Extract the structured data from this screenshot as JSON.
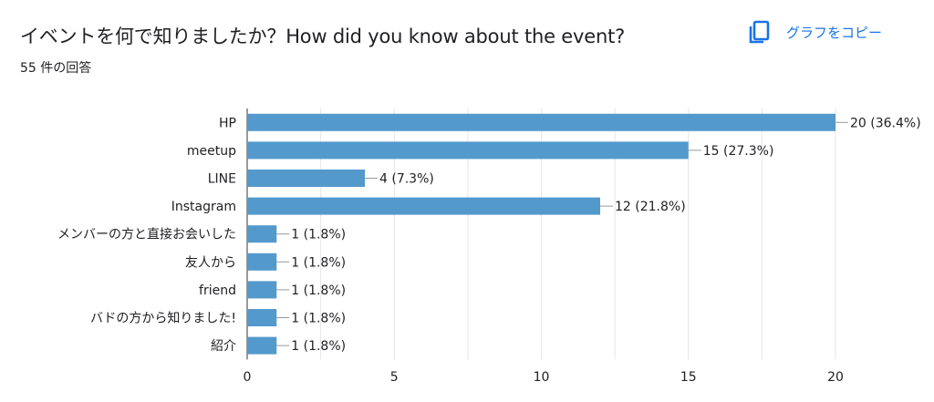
{
  "header": {
    "title": "イベントを何で知りましたか？How did you know about the event?",
    "response_count": "55 件の回答",
    "copy_label": "グラフをコピー",
    "copy_icon": "copy-icon"
  },
  "colors": {
    "bar": "#5499cc",
    "accent": "#1a73e8",
    "grid": "#e6e6e6"
  },
  "chart_data": {
    "type": "bar",
    "orientation": "horizontal",
    "categories": [
      "HP",
      "meetup",
      "LINE",
      "Instagram",
      "メンバーの方と直接お会いした",
      "友人から",
      "friend",
      "バドの方から知りました!",
      "紹介"
    ],
    "values": [
      20,
      15,
      4,
      12,
      1,
      1,
      1,
      1,
      1
    ],
    "data_labels": [
      "20 (36.4%)",
      "15 (27.3%)",
      "4 (7.3%)",
      "12 (21.8%)",
      "1 (1.8%)",
      "1 (1.8%)",
      "1 (1.8%)",
      "1 (1.8%)",
      "1 (1.8%)"
    ],
    "xlim": [
      0,
      20
    ],
    "xticks": [
      0,
      5,
      10,
      15,
      20
    ],
    "grid": true,
    "title": "",
    "xlabel": "",
    "ylabel": ""
  }
}
